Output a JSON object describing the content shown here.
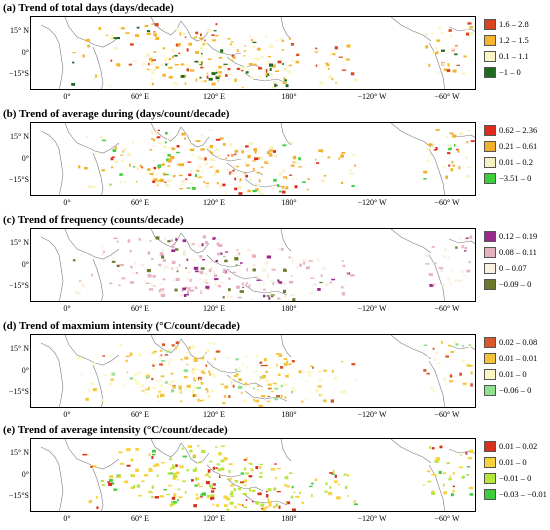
{
  "lat_labels": [
    "15° N",
    "0°",
    "−15°S"
  ],
  "lon_labels": [
    "0°",
    "60° E",
    "120° E",
    "180°",
    "−120° W",
    "−60° W"
  ],
  "panels": [
    {
      "title": "(a) Trend of total days (days/decade)",
      "legend": [
        {
          "label": "1.6 – 2.8",
          "color": "#d9441f"
        },
        {
          "label": "1.2 – 1.5",
          "color": "#f5b52a"
        },
        {
          "label": "0.1 – 1.1",
          "color": "#fbf5c4"
        },
        {
          "label": "−1 – 0",
          "color": "#1e6b1e"
        }
      ]
    },
    {
      "title": "(b) Trend of average during (days/count/decade)",
      "legend": [
        {
          "label": "0.62 – 2.36",
          "color": "#e02a1c"
        },
        {
          "label": "0.21 – 0.61",
          "color": "#f2b02b"
        },
        {
          "label": "0.01 – 0.2",
          "color": "#f9f1c1"
        },
        {
          "label": "−3.51 – 0",
          "color": "#3ccc3c"
        }
      ]
    },
    {
      "title": "(c) Trend of frequency (counts/decade)",
      "legend": [
        {
          "label": "0.12 – 0.19",
          "color": "#9c2a8a"
        },
        {
          "label": "0.08 – 0.11",
          "color": "#e6b2c0"
        },
        {
          "label": "0 – 0.07",
          "color": "#f8f0e0"
        },
        {
          "label": "−0.09 – 0",
          "color": "#6b7a2a"
        }
      ]
    },
    {
      "title": "(d) Trend of maxmium intensity (°C/count/decade)",
      "legend": [
        {
          "label": "0.02 – 0.08",
          "color": "#d9562a"
        },
        {
          "label": "0.01 – 0.01",
          "color": "#f3c43a"
        },
        {
          "label": "0.01 – 0",
          "color": "#faf7c2"
        },
        {
          "label": "−0.06 – 0",
          "color": "#8fe08f"
        }
      ]
    },
    {
      "title": "(e) Trend of average intensity (°C/count/decade)",
      "legend": [
        {
          "label": "0.01 – 0.02",
          "color": "#d7301f"
        },
        {
          "label": "0.01 – 0",
          "color": "#f7d23a"
        },
        {
          "label": "−0.01 – 0",
          "color": "#b6e63a"
        },
        {
          "label": "−0.03 – −0.01",
          "color": "#3ccc3c"
        }
      ]
    }
  ]
}
